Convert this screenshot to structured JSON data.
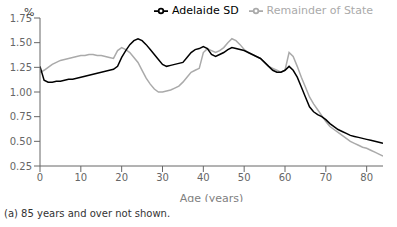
{
  "chart_data": {
    "type": "line",
    "xlabel": "Age (years)",
    "ylabel": "%",
    "footnote": "(a) 85 years and over not shown.",
    "x": [
      0,
      1,
      2,
      3,
      4,
      5,
      6,
      7,
      8,
      9,
      10,
      11,
      12,
      13,
      14,
      15,
      16,
      17,
      18,
      19,
      20,
      21,
      22,
      23,
      24,
      25,
      26,
      27,
      28,
      29,
      30,
      31,
      32,
      33,
      34,
      35,
      36,
      37,
      38,
      39,
      40,
      41,
      42,
      43,
      44,
      45,
      46,
      47,
      48,
      49,
      50,
      51,
      52,
      53,
      54,
      55,
      56,
      57,
      58,
      59,
      60,
      61,
      62,
      63,
      64,
      65,
      66,
      67,
      68,
      69,
      70,
      71,
      72,
      73,
      74,
      75,
      76,
      77,
      78,
      79,
      80,
      81,
      82,
      83,
      84
    ],
    "series": [
      {
        "name": "Remainder of State",
        "color": "#aaaaaa",
        "values": [
          1.2,
          1.22,
          1.25,
          1.28,
          1.3,
          1.32,
          1.33,
          1.34,
          1.35,
          1.36,
          1.37,
          1.37,
          1.38,
          1.38,
          1.37,
          1.37,
          1.36,
          1.35,
          1.34,
          1.42,
          1.45,
          1.43,
          1.4,
          1.35,
          1.3,
          1.22,
          1.14,
          1.08,
          1.03,
          1.0,
          1.0,
          1.01,
          1.02,
          1.04,
          1.06,
          1.1,
          1.15,
          1.2,
          1.22,
          1.24,
          1.4,
          1.44,
          1.42,
          1.4,
          1.42,
          1.45,
          1.5,
          1.54,
          1.52,
          1.48,
          1.43,
          1.4,
          1.38,
          1.36,
          1.34,
          1.3,
          1.26,
          1.24,
          1.22,
          1.2,
          1.22,
          1.4,
          1.36,
          1.26,
          1.15,
          1.05,
          0.95,
          0.88,
          0.82,
          0.76,
          0.7,
          0.65,
          0.62,
          0.59,
          0.56,
          0.53,
          0.5,
          0.48,
          0.46,
          0.44,
          0.43,
          0.41,
          0.39,
          0.37,
          0.35
        ]
      },
      {
        "name": "Adelaide SD",
        "color": "#000000",
        "values": [
          1.26,
          1.12,
          1.1,
          1.1,
          1.11,
          1.11,
          1.12,
          1.13,
          1.13,
          1.14,
          1.15,
          1.16,
          1.17,
          1.18,
          1.19,
          1.2,
          1.21,
          1.22,
          1.23,
          1.26,
          1.35,
          1.42,
          1.48,
          1.52,
          1.54,
          1.52,
          1.48,
          1.43,
          1.38,
          1.33,
          1.28,
          1.26,
          1.27,
          1.28,
          1.29,
          1.3,
          1.35,
          1.4,
          1.43,
          1.44,
          1.46,
          1.44,
          1.38,
          1.36,
          1.38,
          1.4,
          1.43,
          1.45,
          1.44,
          1.43,
          1.42,
          1.4,
          1.38,
          1.36,
          1.34,
          1.3,
          1.26,
          1.22,
          1.2,
          1.2,
          1.22,
          1.26,
          1.22,
          1.15,
          1.05,
          0.95,
          0.85,
          0.8,
          0.77,
          0.75,
          0.72,
          0.68,
          0.65,
          0.62,
          0.6,
          0.58,
          0.56,
          0.55,
          0.54,
          0.53,
          0.52,
          0.51,
          0.5,
          0.49,
          0.48
        ]
      }
    ],
    "xlim": [
      0,
      84
    ],
    "xticks": [
      0,
      10,
      20,
      30,
      40,
      50,
      60,
      70,
      80
    ],
    "ylim": [
      0.25,
      1.75
    ],
    "yticks": [
      0.25,
      {
        "value": 0.5,
        "label": "0.50"
      },
      0.75,
      {
        "value": 1.0,
        "label": "1.00"
      },
      1.25,
      {
        "value": 1.5,
        "label": "1.50"
      },
      1.75
    ],
    "legend": "upper right",
    "grid": false
  }
}
